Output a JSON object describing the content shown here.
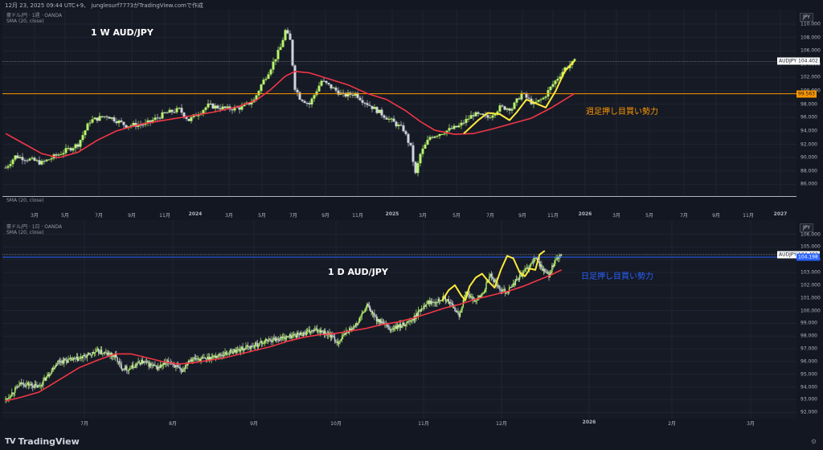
{
  "header": {
    "text": "12月 23, 2025 09:44 UTC+9、 junglesurf7773がTradingView.comで作成"
  },
  "footer": {
    "brand": "TradingView",
    "logo_text": "TV"
  },
  "chart_data": [
    {
      "type": "candlestick",
      "instrument": "豪ドル/円 · 1週 · OANDA",
      "indicator": "SMA (20, close)",
      "lower_indicator": "SMA (20, close)",
      "title": "1 W AUD/JPY",
      "annotation": "週足押し目買い勢力",
      "axis_unit": "JPY",
      "x_ticks": [
        "3月",
        "5月",
        "7月",
        "9月",
        "11月",
        "2024",
        "3月",
        "5月",
        "7月",
        "9月",
        "11月",
        "2025",
        "3月",
        "5月",
        "7月",
        "9月",
        "11月",
        "2026",
        "3月",
        "5月",
        "7月",
        "9月",
        "11月",
        "2027"
      ],
      "y_ticks": [
        86,
        88,
        90,
        92,
        94,
        96,
        98,
        100,
        102,
        104,
        106,
        108,
        110
      ],
      "ylim": [
        85.2,
        111.2
      ],
      "price_tag": {
        "label": "AUDJPY",
        "value": "104.402"
      },
      "level_tag": {
        "value": "99.563"
      },
      "close_path": [
        [
          0,
          88.5
        ],
        [
          4,
          90.2
        ],
        [
          9,
          89.8
        ],
        [
          15,
          89.2
        ],
        [
          22,
          90.5
        ],
        [
          30,
          92.0
        ],
        [
          35,
          95.5
        ],
        [
          42,
          96.3
        ],
        [
          50,
          94.8
        ],
        [
          58,
          95.0
        ],
        [
          66,
          96.6
        ],
        [
          72,
          97.2
        ],
        [
          76,
          95.6
        ],
        [
          84,
          97.8
        ],
        [
          92,
          97.3
        ],
        [
          98,
          97.5
        ],
        [
          103,
          98.6
        ],
        [
          106,
          100.9
        ],
        [
          110,
          103.5
        ],
        [
          114,
          106.5
        ],
        [
          116,
          109.0
        ],
        [
          118,
          107.5
        ],
        [
          120,
          100.5
        ],
        [
          122,
          99.0
        ],
        [
          126,
          98.0
        ],
        [
          131,
          101.5
        ],
        [
          136,
          100.3
        ],
        [
          140,
          99.3
        ],
        [
          145,
          99.6
        ],
        [
          148,
          98.6
        ],
        [
          153,
          97.3
        ],
        [
          160,
          95.5
        ],
        [
          165,
          94.2
        ],
        [
          168,
          91.5
        ],
        [
          170,
          87.5
        ],
        [
          172,
          90.5
        ],
        [
          176,
          93.1
        ],
        [
          182,
          93.9
        ],
        [
          188,
          94.7
        ],
        [
          194,
          96.5
        ],
        [
          200,
          96.0
        ],
        [
          205,
          97.5
        ],
        [
          210,
          97.4
        ],
        [
          214,
          99.6
        ],
        [
          219,
          98.0
        ],
        [
          223,
          98.9
        ],
        [
          227,
          101.0
        ],
        [
          232,
          103.4
        ],
        [
          236,
          104.4
        ]
      ],
      "sma_path": [
        [
          0,
          93.6
        ],
        [
          8,
          92.0
        ],
        [
          15,
          90.6
        ],
        [
          22,
          90.0
        ],
        [
          30,
          90.8
        ],
        [
          38,
          92.6
        ],
        [
          46,
          94.0
        ],
        [
          56,
          95.0
        ],
        [
          66,
          95.6
        ],
        [
          76,
          96.2
        ],
        [
          86,
          96.8
        ],
        [
          96,
          97.6
        ],
        [
          104,
          98.6
        ],
        [
          110,
          100.2
        ],
        [
          116,
          102.2
        ],
        [
          120,
          102.9
        ],
        [
          126,
          102.7
        ],
        [
          134,
          101.8
        ],
        [
          142,
          100.9
        ],
        [
          150,
          99.6
        ],
        [
          158,
          98.7
        ],
        [
          166,
          97.0
        ],
        [
          172,
          95.4
        ],
        [
          178,
          94.1
        ],
        [
          186,
          93.5
        ],
        [
          194,
          93.6
        ],
        [
          202,
          94.3
        ],
        [
          210,
          95.1
        ],
        [
          218,
          95.9
        ],
        [
          226,
          97.4
        ],
        [
          236,
          99.6
        ]
      ],
      "level_lines": [
        99.563,
        104.402
      ],
      "highlight_curve": [
        [
          190,
          93.6
        ],
        [
          196,
          95.6
        ],
        [
          200,
          96.7
        ],
        [
          205,
          96.5
        ],
        [
          209,
          95.6
        ],
        [
          212,
          96.8
        ],
        [
          216,
          98.7
        ],
        [
          220,
          98.1
        ],
        [
          224,
          97.5
        ],
        [
          228,
          99.9
        ],
        [
          232,
          103.0
        ],
        [
          236,
          104.5
        ]
      ]
    },
    {
      "type": "candlestick",
      "instrument": "豪ドル/円 · 1日 · OANDA",
      "indicator": "SMA (20, close)",
      "title": "1 D AUD/JPY",
      "annotation": "日足押し目買い勢力",
      "axis_unit": "JPY",
      "x_ticks": [
        "7月",
        "8月",
        "9月",
        "10月",
        "11月",
        "12月",
        "2026",
        "2月",
        "3月"
      ],
      "y_ticks": [
        92,
        93,
        94,
        95,
        96,
        97,
        98,
        99,
        100,
        101,
        102,
        103,
        104,
        105,
        106
      ],
      "ylim": [
        91.7,
        106.6
      ],
      "price_tag": {
        "label": "AUDJPY",
        "value": "104.402"
      },
      "level_tag": {
        "value": "104.198"
      },
      "close_path": [
        [
          0,
          93.0
        ],
        [
          15,
          94.3
        ],
        [
          32,
          94.0
        ],
        [
          50,
          96.0
        ],
        [
          70,
          96.2
        ],
        [
          88,
          96.8
        ],
        [
          105,
          96.4
        ],
        [
          110,
          95.6
        ],
        [
          118,
          95.4
        ],
        [
          130,
          96.0
        ],
        [
          145,
          95.5
        ],
        [
          158,
          96.0
        ],
        [
          168,
          95.2
        ],
        [
          176,
          96.2
        ],
        [
          190,
          96.2
        ],
        [
          205,
          96.5
        ],
        [
          222,
          96.9
        ],
        [
          236,
          97.2
        ],
        [
          252,
          97.7
        ],
        [
          268,
          97.9
        ],
        [
          284,
          98.2
        ],
        [
          300,
          98.5
        ],
        [
          310,
          98.1
        ],
        [
          318,
          97.5
        ],
        [
          326,
          98.3
        ],
        [
          336,
          98.9
        ],
        [
          346,
          100.4
        ],
        [
          354,
          99.4
        ],
        [
          362,
          98.9
        ],
        [
          368,
          98.5
        ],
        [
          378,
          98.8
        ],
        [
          390,
          99.3
        ],
        [
          402,
          100.6
        ],
        [
          412,
          100.8
        ],
        [
          420,
          101.0
        ],
        [
          428,
          100.3
        ],
        [
          434,
          99.6
        ],
        [
          440,
          101.4
        ],
        [
          448,
          100.8
        ],
        [
          456,
          101.2
        ],
        [
          464,
          102.8
        ],
        [
          472,
          101.8
        ],
        [
          480,
          101.5
        ],
        [
          490,
          102.5
        ],
        [
          500,
          103.4
        ],
        [
          508,
          104.1
        ],
        [
          514,
          103.2
        ],
        [
          520,
          102.8
        ],
        [
          526,
          103.9
        ],
        [
          532,
          104.4
        ]
      ],
      "sma_path": [
        [
          0,
          92.9
        ],
        [
          15,
          93.2
        ],
        [
          32,
          93.6
        ],
        [
          50,
          94.5
        ],
        [
          70,
          95.5
        ],
        [
          88,
          96.1
        ],
        [
          105,
          96.6
        ],
        [
          120,
          96.6
        ],
        [
          135,
          96.3
        ],
        [
          150,
          96.0
        ],
        [
          165,
          95.8
        ],
        [
          180,
          95.9
        ],
        [
          195,
          96.1
        ],
        [
          210,
          96.3
        ],
        [
          225,
          96.6
        ],
        [
          240,
          96.9
        ],
        [
          255,
          97.2
        ],
        [
          270,
          97.6
        ],
        [
          285,
          97.9
        ],
        [
          300,
          98.1
        ],
        [
          315,
          98.2
        ],
        [
          330,
          98.4
        ],
        [
          345,
          98.6
        ],
        [
          360,
          98.9
        ],
        [
          375,
          99.1
        ],
        [
          390,
          99.4
        ],
        [
          405,
          99.8
        ],
        [
          420,
          100.2
        ],
        [
          435,
          100.5
        ],
        [
          450,
          100.9
        ],
        [
          465,
          101.2
        ],
        [
          480,
          101.5
        ],
        [
          495,
          101.9
        ],
        [
          510,
          102.4
        ],
        [
          522,
          102.8
        ],
        [
          532,
          103.2
        ]
      ],
      "level_lines": [
        104.198,
        104.402
      ],
      "highlight_curve": [
        [
          418,
          100.8
        ],
        [
          424,
          101.6
        ],
        [
          430,
          102.0
        ],
        [
          436,
          101.2
        ],
        [
          440,
          100.8
        ],
        [
          444,
          101.9
        ],
        [
          450,
          102.6
        ],
        [
          456,
          102.9
        ],
        [
          462,
          102.3
        ],
        [
          468,
          101.8
        ],
        [
          474,
          103.2
        ],
        [
          480,
          104.3
        ],
        [
          486,
          104.1
        ],
        [
          492,
          103.0
        ],
        [
          497,
          102.7
        ],
        [
          502,
          103.3
        ],
        [
          507,
          103.2
        ],
        [
          511,
          104.4
        ],
        [
          516,
          104.7
        ]
      ]
    }
  ]
}
